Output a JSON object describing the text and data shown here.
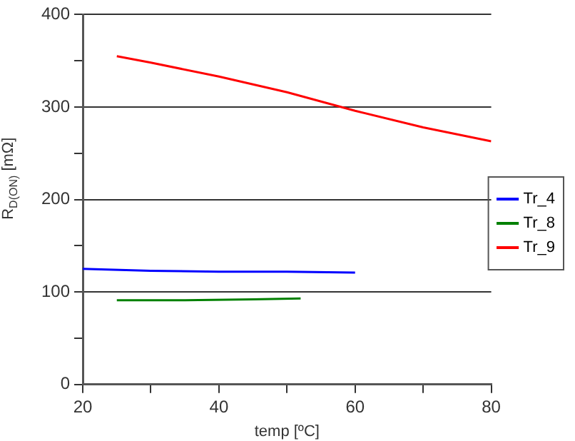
{
  "chart_data": {
    "type": "line",
    "xlabel": "temp [ºC]",
    "ylabel": "R$_{D(ON)}$ [mΩ]",
    "xlim": [
      20,
      80
    ],
    "xticks": [
      20,
      {
        "value": 30,
        "label": null
      },
      40,
      {
        "value": 50,
        "label": null
      },
      60,
      {
        "value": 70,
        "label": null
      },
      80
    ],
    "ylim": [
      0,
      400
    ],
    "yticks": [
      0,
      {
        "value": 50,
        "label": null
      },
      100,
      {
        "value": 150,
        "label": null
      },
      200,
      {
        "value": 250,
        "label": null
      },
      300,
      {
        "value": 350,
        "label": null
      },
      400
    ],
    "grid": "y",
    "legend": "right",
    "marker": "none",
    "line_style": "solid",
    "series": [
      {
        "name": "Tr_4",
        "color": "#0000ff",
        "x": [
          20,
          30,
          40,
          50,
          60
        ],
        "values": [
          125,
          123,
          122,
          122,
          121
        ]
      },
      {
        "name": "Tr_8",
        "color": "#008000",
        "x": [
          25,
          35,
          45,
          52
        ],
        "values": [
          91,
          91,
          92,
          93
        ]
      },
      {
        "name": "Tr_9",
        "color": "#ff0000",
        "x": [
          25,
          30,
          40,
          50,
          60,
          70,
          80
        ],
        "values": [
          355,
          348,
          333,
          316,
          296,
          278,
          263
        ]
      }
    ]
  }
}
